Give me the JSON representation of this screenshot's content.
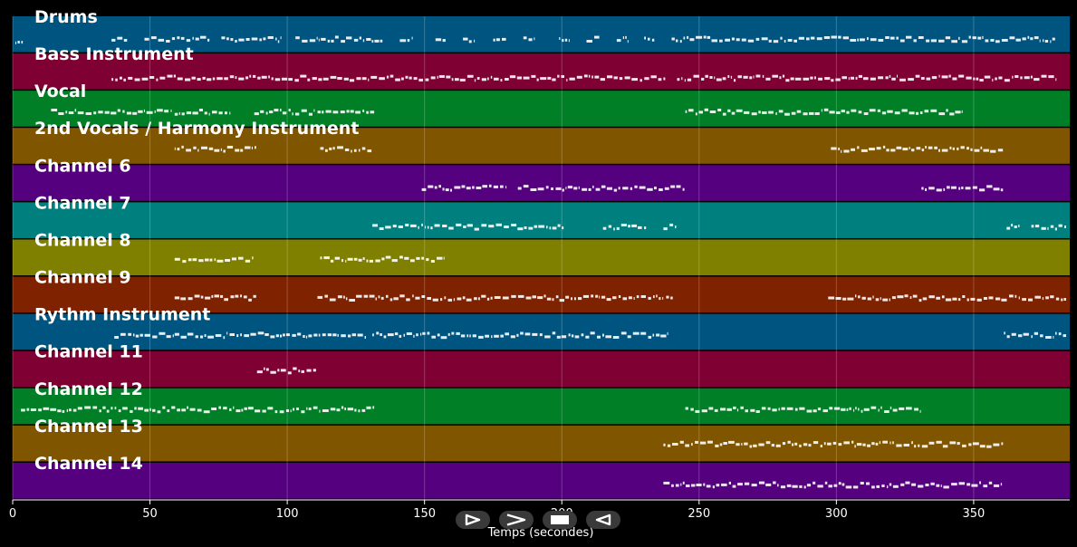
{
  "chart_data": {
    "type": "piano-roll",
    "title": "",
    "xlabel": "Temps (secondes)",
    "ylabel": "",
    "xlim": [
      0,
      385
    ],
    "x_ticks": [
      0,
      50,
      100,
      150,
      200,
      250,
      300,
      350
    ],
    "grid": true,
    "tracks": [
      {
        "name": "Drums",
        "color": "#005580",
        "segments": [
          [
            1,
            4,
            0.7
          ],
          [
            36,
            42,
            0.6
          ],
          [
            48,
            72,
            0.6
          ],
          [
            76,
            98,
            0.6
          ],
          [
            103,
            135,
            0.6
          ],
          [
            141,
            146,
            0.6
          ],
          [
            154,
            158,
            0.6
          ],
          [
            164,
            168,
            0.6
          ],
          [
            175,
            180,
            0.6
          ],
          [
            186,
            190,
            0.6
          ],
          [
            199,
            203,
            0.6
          ],
          [
            209,
            214,
            0.6
          ],
          [
            220,
            224,
            0.6
          ],
          [
            230,
            234,
            0.6
          ],
          [
            240,
            380,
            0.6
          ]
        ]
      },
      {
        "name": "Bass Instrument",
        "color": "#7f0033",
        "segments": [
          [
            36,
            238,
            0.7
          ],
          [
            242,
            380,
            0.7
          ]
        ]
      },
      {
        "name": "Vocal",
        "color": "#007f26",
        "segments": [
          [
            14,
            58,
            0.5
          ],
          [
            59,
            79,
            0.5
          ],
          [
            88,
            110,
            0.5
          ],
          [
            111,
            132,
            0.5
          ],
          [
            245,
            346,
            0.5
          ]
        ]
      },
      {
        "name": "2nd Vocals / Harmony Instrument",
        "color": "#7f5500",
        "segments": [
          [
            59,
            89,
            0.5
          ],
          [
            112,
            131,
            0.5
          ],
          [
            298,
            361,
            0.5
          ]
        ]
      },
      {
        "name": "Channel 6",
        "color": "#55007f",
        "segments": [
          [
            149,
            180,
            0.6
          ],
          [
            184,
            245,
            0.6
          ],
          [
            331,
            361,
            0.6
          ]
        ]
      },
      {
        "name": "Channel 7",
        "color": "#007f7f",
        "segments": [
          [
            131,
            201,
            0.7
          ],
          [
            215,
            231,
            0.7
          ],
          [
            237,
            242,
            0.7
          ],
          [
            362,
            367,
            0.7
          ],
          [
            371,
            384,
            0.7
          ]
        ]
      },
      {
        "name": "Channel 8",
        "color": "#7f7f00",
        "segments": [
          [
            59,
            88,
            0.4
          ],
          [
            112,
            157,
            0.4
          ]
        ]
      },
      {
        "name": "Channel 9",
        "color": "#7f2200",
        "segments": [
          [
            59,
            89,
            0.5
          ],
          [
            111,
            237,
            0.5
          ],
          [
            238,
            241,
            0.5
          ],
          [
            297,
            384,
            0.5
          ]
        ]
      },
      {
        "name": "Rythm Instrument",
        "color": "#005580",
        "segments": [
          [
            37,
            59,
            0.5
          ],
          [
            59,
            78,
            0.5
          ],
          [
            79,
            129,
            0.5
          ],
          [
            131,
            239,
            0.5
          ],
          [
            361,
            384,
            0.5
          ]
        ]
      },
      {
        "name": "Channel 11",
        "color": "#7f0033",
        "segments": [
          [
            89,
            111,
            0.4
          ]
        ]
      },
      {
        "name": "Channel 12",
        "color": "#007f26",
        "segments": [
          [
            3,
            132,
            0.5
          ],
          [
            245,
            331,
            0.5
          ]
        ]
      },
      {
        "name": "Channel 13",
        "color": "#7f5500",
        "segments": [
          [
            237,
            361,
            0.35
          ]
        ]
      },
      {
        "name": "Channel 14",
        "color": "#55007f",
        "segments": [
          [
            237,
            361,
            0.55
          ]
        ]
      }
    ]
  },
  "controls": [
    {
      "name": "play-button",
      "icon": "play-icon"
    },
    {
      "name": "forward-button",
      "icon": "chevron-right-icon"
    },
    {
      "name": "stop-button",
      "icon": "stop-icon"
    },
    {
      "name": "rewind-button",
      "icon": "play-reverse-icon"
    }
  ]
}
